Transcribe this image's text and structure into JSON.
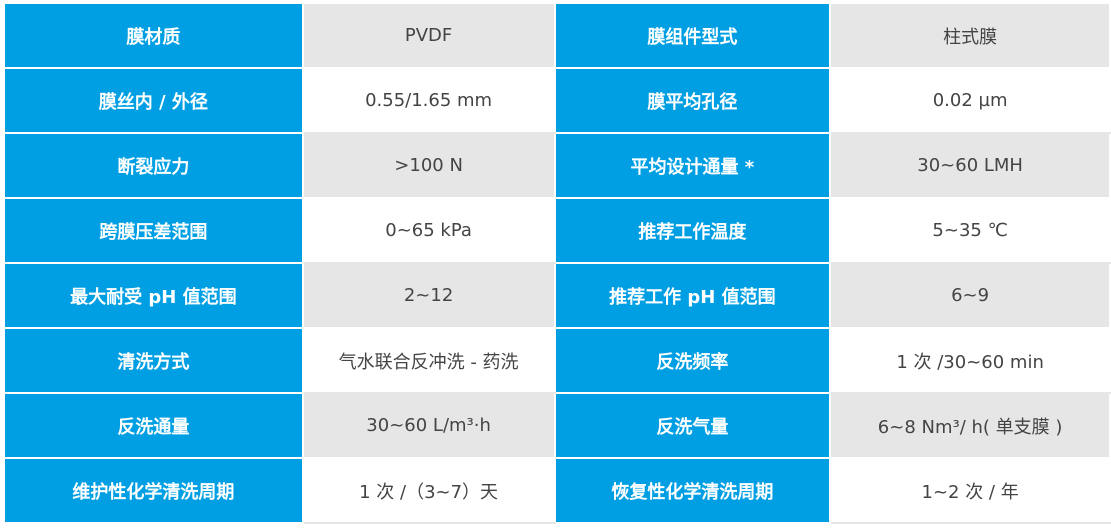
{
  "colors": {
    "header_bg": "#009fe3",
    "stripe_bg": "#e6e6e6"
  },
  "rows": [
    {
      "k1": "膜材质",
      "v1": "PVDF",
      "k2": "膜组件型式",
      "v2": "柱式膜"
    },
    {
      "k1": "膜丝内 / 外径",
      "v1": "0.55/1.65 mm",
      "k2": "膜平均孔径",
      "v2": "0.02 µm"
    },
    {
      "k1": "断裂应力",
      "v1": ">100 N",
      "k2": "平均设计通量 *",
      "v2": "30~60 LMH"
    },
    {
      "k1": "跨膜压差范围",
      "v1": "0~65 kPa",
      "k2": "推荐工作温度",
      "v2": "5~35 ℃"
    },
    {
      "k1": "最大耐受 pH 值范围",
      "v1": "2~12",
      "k2": "推荐工作 pH 值范围",
      "v2": "6~9"
    },
    {
      "k1": "清洗方式",
      "v1": "气水联合反冲洗 - 药洗",
      "k2": "反洗频率",
      "v2": "1 次 /30~60 min"
    },
    {
      "k1": "反洗通量",
      "v1": "30~60 L/m³·h",
      "k2": "反洗气量",
      "v2": "6~8 Nm³/ h( 单支膜 )"
    },
    {
      "k1": "维护性化学清洗周期",
      "v1": "1 次 /（3~7）天",
      "k2": "恢复性化学清洗周期",
      "v2": "1~2 次 / 年"
    }
  ]
}
